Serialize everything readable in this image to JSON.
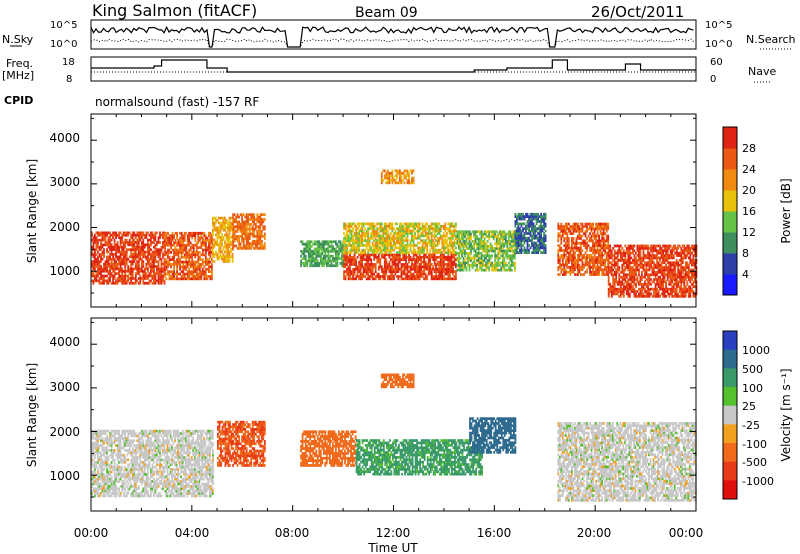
{
  "header": {
    "station": "King Salmon (fitACF)",
    "beam": "Beam 09",
    "date": "26/Oct/2011"
  },
  "panels": {
    "noise": {
      "left_label": "N.Sky",
      "right_label": "N.Search",
      "left_ticks": [
        "10^5",
        "10^0"
      ],
      "right_ticks": [
        "10^5",
        "10^0"
      ]
    },
    "freq": {
      "left_label_1": "Freq.",
      "left_label_2": "[MHz]",
      "right_label": "Nave",
      "left_ticks": [
        "18",
        "8"
      ],
      "right_ticks": [
        "60",
        "0"
      ]
    },
    "cpid": {
      "label": "CPID",
      "text": "normalsound (fast) -157 RF"
    }
  },
  "axes": {
    "ylabel": "Slant Range [km]",
    "yticks": [
      "1000",
      "2000",
      "3000",
      "4000"
    ],
    "xlabel": "Time UT",
    "xticks": [
      "00:00",
      "04:00",
      "08:00",
      "12:00",
      "16:00",
      "20:00",
      "00:00"
    ]
  },
  "colorbars": {
    "power": {
      "label": "Power [dB]",
      "ticks": [
        "4",
        "8",
        "12",
        "16",
        "20",
        "24",
        "28"
      ],
      "colors": [
        "#1a1aff",
        "#2d3fa8",
        "#3f8f5e",
        "#66c247",
        "#e8c20a",
        "#f08a10",
        "#ea5a14",
        "#e02515"
      ]
    },
    "velocity": {
      "label": "Velocity [m s⁻¹]",
      "ticks": [
        "1000",
        "500",
        "100",
        "25",
        "-25",
        "-100",
        "-500",
        "-1000"
      ],
      "colors": [
        "#2a3fbf",
        "#2e6b8f",
        "#3a9a6a",
        "#55c02e",
        "#c8c8c8",
        "#f2a020",
        "#f06a1a",
        "#e83a16",
        "#e00d0d"
      ]
    }
  },
  "chart_data": [
    {
      "type": "heatmap",
      "title": "Power",
      "xlabel": "Time UT",
      "ylabel": "Slant Range [km]",
      "xlim": [
        "00:00",
        "24:00"
      ],
      "ylim": [
        180,
        4600
      ],
      "colorbar": {
        "label": "Power [dB]",
        "range": [
          0,
          32
        ],
        "ticks": [
          4,
          8,
          12,
          16,
          20,
          24,
          28
        ]
      },
      "regions": [
        {
          "t": [
            0.0,
            2.9
          ],
          "r": [
            700,
            1900
          ],
          "value": 28
        },
        {
          "t": [
            2.9,
            4.8
          ],
          "r": [
            800,
            1900
          ],
          "value": 26
        },
        {
          "t": [
            4.8,
            5.6
          ],
          "r": [
            1200,
            2200
          ],
          "value": 20
        },
        {
          "t": [
            5.6,
            6.9
          ],
          "r": [
            1500,
            2300
          ],
          "value": 24
        },
        {
          "t": [
            8.3,
            10.0
          ],
          "r": [
            1100,
            1700
          ],
          "value": 12
        },
        {
          "t": [
            10.0,
            14.5
          ],
          "r": [
            800,
            1400
          ],
          "value": 28
        },
        {
          "t": [
            10.0,
            14.5
          ],
          "r": [
            1400,
            2100
          ],
          "value": 18
        },
        {
          "t": [
            14.5,
            16.8
          ],
          "r": [
            1000,
            1900
          ],
          "value": 14
        },
        {
          "t": [
            16.8,
            18.0
          ],
          "r": [
            1400,
            2300
          ],
          "value": 8
        },
        {
          "t": [
            18.5,
            20.5
          ],
          "r": [
            900,
            2100
          ],
          "value": 26
        },
        {
          "t": [
            20.5,
            24.0
          ],
          "r": [
            400,
            1600
          ],
          "value": 28
        },
        {
          "t": [
            11.5,
            12.8
          ],
          "r": [
            3000,
            3300
          ],
          "value": 22
        }
      ]
    },
    {
      "type": "heatmap",
      "title": "Velocity",
      "xlabel": "Time UT",
      "ylabel": "Slant Range [km]",
      "xlim": [
        "00:00",
        "24:00"
      ],
      "ylim": [
        180,
        4600
      ],
      "colorbar": {
        "label": "Velocity [m s⁻¹]",
        "ticks": [
          1000,
          500,
          100,
          25,
          -25,
          -100,
          -500,
          -1000
        ]
      },
      "regions": [
        {
          "t": [
            0.0,
            4.8
          ],
          "r": [
            500,
            2000
          ],
          "value": 0
        },
        {
          "t": [
            5.0,
            6.9
          ],
          "r": [
            1200,
            2200
          ],
          "value": -500
        },
        {
          "t": [
            8.3,
            10.5
          ],
          "r": [
            1200,
            2000
          ],
          "value": -400
        },
        {
          "t": [
            10.5,
            15.5
          ],
          "r": [
            1000,
            1800
          ],
          "value": 120
        },
        {
          "t": [
            15.0,
            16.8
          ],
          "r": [
            1500,
            2300
          ],
          "value": 600
        },
        {
          "t": [
            18.5,
            24.0
          ],
          "r": [
            400,
            2200
          ],
          "value": 0
        },
        {
          "t": [
            11.5,
            12.8
          ],
          "r": [
            3000,
            3300
          ],
          "value": -300
        }
      ]
    }
  ]
}
